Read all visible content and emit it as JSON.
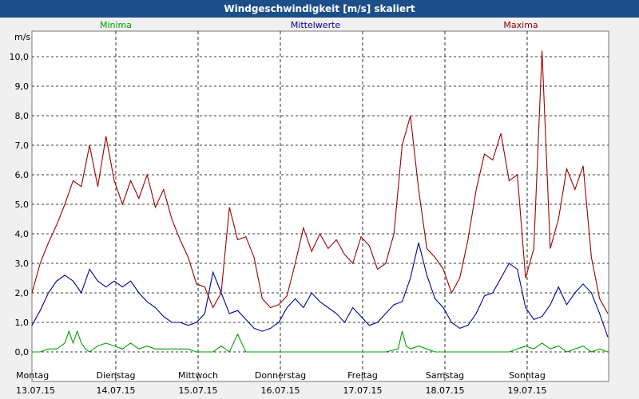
{
  "window": {
    "title": "Windgeschwindigkeit [m/s] skaliert"
  },
  "chart_data": {
    "type": "line",
    "title": "Windgeschwindigkeit [m/s] skaliert",
    "ylabel": "m/s",
    "xlabel": "",
    "ylim": [
      0,
      10.5
    ],
    "xlim": [
      0,
      7
    ],
    "grid": true,
    "yticks": [
      "0,0",
      "1,0",
      "2,0",
      "3,0",
      "4,0",
      "5,0",
      "6,0",
      "7,0",
      "8,0",
      "9,0",
      "10,0"
    ],
    "xticks": [
      {
        "day": "Montag",
        "date": "13.07.15"
      },
      {
        "day": "Dienstag",
        "date": "14.07.15"
      },
      {
        "day": "Mittwoch",
        "date": "15.07.15"
      },
      {
        "day": "Donnerstag",
        "date": "16.07.15"
      },
      {
        "day": "Freitag",
        "date": "17.07.15"
      },
      {
        "day": "Samstag",
        "date": "18.07.15"
      },
      {
        "day": "Sonntag",
        "date": "19.07.15"
      }
    ],
    "series": [
      {
        "name": "Minima",
        "color": "#00a000",
        "x": [
          0,
          0.1,
          0.2,
          0.3,
          0.4,
          0.45,
          0.5,
          0.55,
          0.6,
          0.65,
          0.7,
          0.8,
          0.9,
          1.0,
          1.1,
          1.2,
          1.3,
          1.4,
          1.5,
          1.6,
          1.7,
          1.8,
          1.9,
          2.0,
          2.2,
          2.3,
          2.4,
          2.5,
          2.6,
          2.7,
          2.8,
          3.0,
          3.5,
          4.0,
          4.3,
          4.45,
          4.5,
          4.55,
          4.6,
          4.7,
          4.8,
          4.9,
          5.0,
          5.2,
          5.5,
          5.8,
          6.0,
          6.1,
          6.2,
          6.3,
          6.4,
          6.5,
          6.6,
          6.7,
          6.8,
          6.9,
          7.0
        ],
        "values": [
          0,
          0,
          0.1,
          0.1,
          0.3,
          0.7,
          0.3,
          0.7,
          0.3,
          0.1,
          0,
          0.2,
          0.3,
          0.2,
          0.1,
          0.3,
          0.1,
          0.2,
          0.1,
          0.1,
          0.1,
          0.1,
          0.1,
          0,
          0,
          0.2,
          0,
          0.6,
          0,
          0,
          0,
          0,
          0,
          0,
          0,
          0.1,
          0.7,
          0.2,
          0.1,
          0.2,
          0.1,
          0,
          0,
          0,
          0,
          0,
          0.2,
          0.1,
          0.3,
          0.1,
          0.2,
          0,
          0.1,
          0.2,
          0,
          0.1,
          0
        ]
      },
      {
        "name": "Mittelwerte",
        "color": "#000099",
        "x": [
          0,
          0.1,
          0.2,
          0.3,
          0.4,
          0.5,
          0.6,
          0.7,
          0.8,
          0.9,
          1.0,
          1.1,
          1.2,
          1.3,
          1.4,
          1.5,
          1.6,
          1.7,
          1.8,
          1.9,
          2.0,
          2.1,
          2.2,
          2.3,
          2.4,
          2.5,
          2.6,
          2.7,
          2.8,
          2.9,
          3.0,
          3.1,
          3.2,
          3.3,
          3.4,
          3.5,
          3.6,
          3.7,
          3.8,
          3.9,
          4.0,
          4.1,
          4.2,
          4.3,
          4.4,
          4.5,
          4.6,
          4.7,
          4.8,
          4.9,
          5.0,
          5.1,
          5.2,
          5.3,
          5.4,
          5.5,
          5.6,
          5.7,
          5.8,
          5.9,
          6.0,
          6.1,
          6.2,
          6.3,
          6.4,
          6.5,
          6.6,
          6.7,
          6.8,
          6.9,
          7.0
        ],
        "values": [
          0.9,
          1.4,
          2.0,
          2.4,
          2.6,
          2.4,
          2.0,
          2.8,
          2.4,
          2.2,
          2.4,
          2.2,
          2.4,
          2.0,
          1.7,
          1.5,
          1.2,
          1.0,
          1.0,
          0.9,
          1.0,
          1.3,
          2.7,
          2.0,
          1.3,
          1.4,
          1.1,
          0.8,
          0.7,
          0.8,
          1.0,
          1.5,
          1.8,
          1.5,
          2.0,
          1.7,
          1.5,
          1.3,
          1.0,
          1.5,
          1.2,
          0.9,
          1.0,
          1.3,
          1.6,
          1.7,
          2.5,
          3.7,
          2.6,
          1.8,
          1.5,
          1.0,
          0.8,
          0.9,
          1.3,
          1.9,
          2.0,
          2.5,
          3.0,
          2.8,
          1.5,
          1.1,
          1.2,
          1.6,
          2.2,
          1.6,
          2.0,
          2.3,
          2.0,
          1.3,
          0.5
        ]
      },
      {
        "name": "Maxima",
        "color": "#990000",
        "x": [
          0,
          0.1,
          0.2,
          0.3,
          0.4,
          0.5,
          0.6,
          0.7,
          0.8,
          0.9,
          1.0,
          1.1,
          1.2,
          1.3,
          1.4,
          1.5,
          1.6,
          1.7,
          1.8,
          1.9,
          2.0,
          2.1,
          2.2,
          2.3,
          2.4,
          2.5,
          2.6,
          2.7,
          2.8,
          2.9,
          3.0,
          3.1,
          3.2,
          3.3,
          3.4,
          3.5,
          3.6,
          3.7,
          3.8,
          3.9,
          4.0,
          4.1,
          4.2,
          4.3,
          4.4,
          4.5,
          4.6,
          4.7,
          4.8,
          4.9,
          5.0,
          5.1,
          5.2,
          5.3,
          5.4,
          5.5,
          5.6,
          5.7,
          5.8,
          5.9,
          6.0,
          6.1,
          6.2,
          6.3,
          6.4,
          6.5,
          6.6,
          6.7,
          6.8,
          6.9,
          7.0
        ],
        "values": [
          2.0,
          3.0,
          3.7,
          4.3,
          5.0,
          5.8,
          5.6,
          7.0,
          5.6,
          7.3,
          5.8,
          5.0,
          5.8,
          5.2,
          6.0,
          4.9,
          5.5,
          4.5,
          3.8,
          3.2,
          2.3,
          2.2,
          1.5,
          2.0,
          4.9,
          3.8,
          3.9,
          3.2,
          1.8,
          1.5,
          1.6,
          1.9,
          3.0,
          4.2,
          3.4,
          4.0,
          3.5,
          3.8,
          3.3,
          3.0,
          3.9,
          3.6,
          2.8,
          3.0,
          4.0,
          7.0,
          8.0,
          5.5,
          3.5,
          3.2,
          2.8,
          2.0,
          2.5,
          3.8,
          5.5,
          6.7,
          6.5,
          7.4,
          5.8,
          6.0,
          2.5,
          3.5,
          10.2,
          3.5,
          4.5,
          6.2,
          5.5,
          6.3,
          3.2,
          1.8,
          1.3
        ]
      }
    ]
  }
}
